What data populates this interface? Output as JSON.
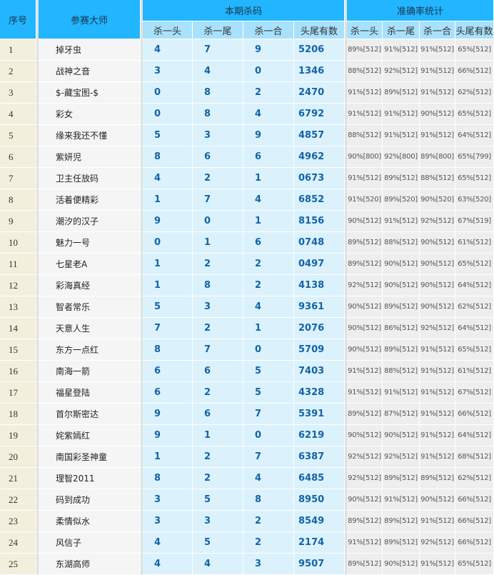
{
  "header": {
    "index": "序号",
    "master": "参赛大师",
    "kill_group": "本期杀码",
    "stats_group": "准确率统计",
    "kill_cols": [
      "杀一头",
      "杀一尾",
      "杀一合",
      "头尾有数"
    ],
    "stats_cols": [
      "杀一头",
      "杀一尾",
      "杀一合",
      "头尾有数"
    ]
  },
  "rows": [
    {
      "idx": "1",
      "name": "掉牙虫",
      "kill": [
        "4",
        "7",
        "9",
        "5206"
      ],
      "stats": [
        "89%[512]",
        "91%[512]",
        "91%[512]",
        "65%[512]"
      ]
    },
    {
      "idx": "2",
      "name": "战神之音",
      "kill": [
        "3",
        "4",
        "0",
        "1346"
      ],
      "stats": [
        "88%[512]",
        "92%[512]",
        "91%[512]",
        "66%[512]"
      ]
    },
    {
      "idx": "3",
      "name": "$-藏宝图-$",
      "kill": [
        "0",
        "8",
        "2",
        "2470"
      ],
      "stats": [
        "91%[512]",
        "89%[512]",
        "91%[512]",
        "62%[512]"
      ]
    },
    {
      "idx": "4",
      "name": "彩女",
      "kill": [
        "0",
        "8",
        "4",
        "6792"
      ],
      "stats": [
        "91%[512]",
        "91%[512]",
        "90%[512]",
        "65%[512]"
      ]
    },
    {
      "idx": "5",
      "name": "缘来我还不懂",
      "kill": [
        "5",
        "3",
        "9",
        "4857"
      ],
      "stats": [
        "88%[512]",
        "91%[512]",
        "91%[512]",
        "64%[512]"
      ]
    },
    {
      "idx": "6",
      "name": "紫妍児",
      "kill": [
        "8",
        "6",
        "6",
        "4962"
      ],
      "stats": [
        "90%[800]",
        "92%[800]",
        "89%[800]",
        "65%[799]"
      ]
    },
    {
      "idx": "7",
      "name": "卫主任放码",
      "kill": [
        "4",
        "2",
        "1",
        "0673"
      ],
      "stats": [
        "91%[512]",
        "89%[512]",
        "88%[512]",
        "65%[512]"
      ]
    },
    {
      "idx": "8",
      "name": "活着便精彩",
      "kill": [
        "1",
        "7",
        "4",
        "6852"
      ],
      "stats": [
        "91%[520]",
        "89%[520]",
        "90%[520]",
        "63%[520]"
      ]
    },
    {
      "idx": "9",
      "name": "潮汐的汉子",
      "kill": [
        "9",
        "0",
        "1",
        "8156"
      ],
      "stats": [
        "90%[512]",
        "91%[512]",
        "92%[512]",
        "67%[519]"
      ]
    },
    {
      "idx": "10",
      "name": "魅力一号",
      "kill": [
        "0",
        "1",
        "6",
        "0748"
      ],
      "stats": [
        "89%[512]",
        "88%[512]",
        "90%[512]",
        "61%[512]"
      ]
    },
    {
      "idx": "11",
      "name": "七星老A",
      "kill": [
        "1",
        "2",
        "2",
        "0497"
      ],
      "stats": [
        "89%[512]",
        "90%[512]",
        "90%[512]",
        "65%[512]"
      ]
    },
    {
      "idx": "12",
      "name": "彩海真经",
      "kill": [
        "1",
        "8",
        "2",
        "4138"
      ],
      "stats": [
        "92%[512]",
        "90%[512]",
        "90%[512]",
        "64%[512]"
      ]
    },
    {
      "idx": "13",
      "name": "智者常乐",
      "kill": [
        "5",
        "3",
        "4",
        "9361"
      ],
      "stats": [
        "90%[512]",
        "89%[512]",
        "90%[512]",
        "62%[512]"
      ]
    },
    {
      "idx": "14",
      "name": "天意人生",
      "kill": [
        "7",
        "2",
        "1",
        "2076"
      ],
      "stats": [
        "90%[512]",
        "86%[512]",
        "92%[512]",
        "64%[512]"
      ]
    },
    {
      "idx": "15",
      "name": "东方一点红",
      "kill": [
        "8",
        "7",
        "0",
        "5709"
      ],
      "stats": [
        "90%[512]",
        "89%[512]",
        "91%[512]",
        "65%[512]"
      ]
    },
    {
      "idx": "16",
      "name": "南海一箭",
      "kill": [
        "6",
        "6",
        "5",
        "7403"
      ],
      "stats": [
        "91%[512]",
        "88%[512]",
        "91%[512]",
        "61%[512]"
      ]
    },
    {
      "idx": "17",
      "name": "福星登陆",
      "kill": [
        "6",
        "2",
        "5",
        "4328"
      ],
      "stats": [
        "91%[512]",
        "91%[512]",
        "91%[512]",
        "67%[512]"
      ]
    },
    {
      "idx": "18",
      "name": "首尔斯密达",
      "kill": [
        "9",
        "6",
        "7",
        "5391"
      ],
      "stats": [
        "89%[512]",
        "87%[512]",
        "91%[512]",
        "66%[512]"
      ]
    },
    {
      "idx": "19",
      "name": "姹紫嫣红",
      "kill": [
        "9",
        "1",
        "0",
        "6219"
      ],
      "stats": [
        "90%[512]",
        "90%[512]",
        "91%[512]",
        "64%[512]"
      ]
    },
    {
      "idx": "20",
      "name": "南国彩圣神童",
      "kill": [
        "1",
        "2",
        "7",
        "6387"
      ],
      "stats": [
        "92%[512]",
        "92%[512]",
        "91%[512]",
        "68%[512]"
      ]
    },
    {
      "idx": "21",
      "name": "理智2011",
      "kill": [
        "8",
        "2",
        "4",
        "6485"
      ],
      "stats": [
        "92%[512]",
        "89%[512]",
        "89%[512]",
        "62%[512]"
      ]
    },
    {
      "idx": "22",
      "name": "码到成功",
      "kill": [
        "3",
        "5",
        "8",
        "8950"
      ],
      "stats": [
        "90%[512]",
        "91%[512]",
        "90%[512]",
        "66%[512]"
      ]
    },
    {
      "idx": "23",
      "name": "柔情似水",
      "kill": [
        "3",
        "3",
        "2",
        "8549"
      ],
      "stats": [
        "89%[512]",
        "89%[512]",
        "91%[512]",
        "66%[512]"
      ]
    },
    {
      "idx": "24",
      "name": "风信子",
      "kill": [
        "4",
        "5",
        "2",
        "2174"
      ],
      "stats": [
        "91%[512]",
        "89%[512]",
        "92%[512]",
        "66%[512]"
      ]
    },
    {
      "idx": "25",
      "name": "东湖高师",
      "kill": [
        "4",
        "4",
        "3",
        "9507"
      ],
      "stats": [
        "89%[512]",
        "90%[512]",
        "91%[512]",
        "65%[512]"
      ]
    }
  ]
}
